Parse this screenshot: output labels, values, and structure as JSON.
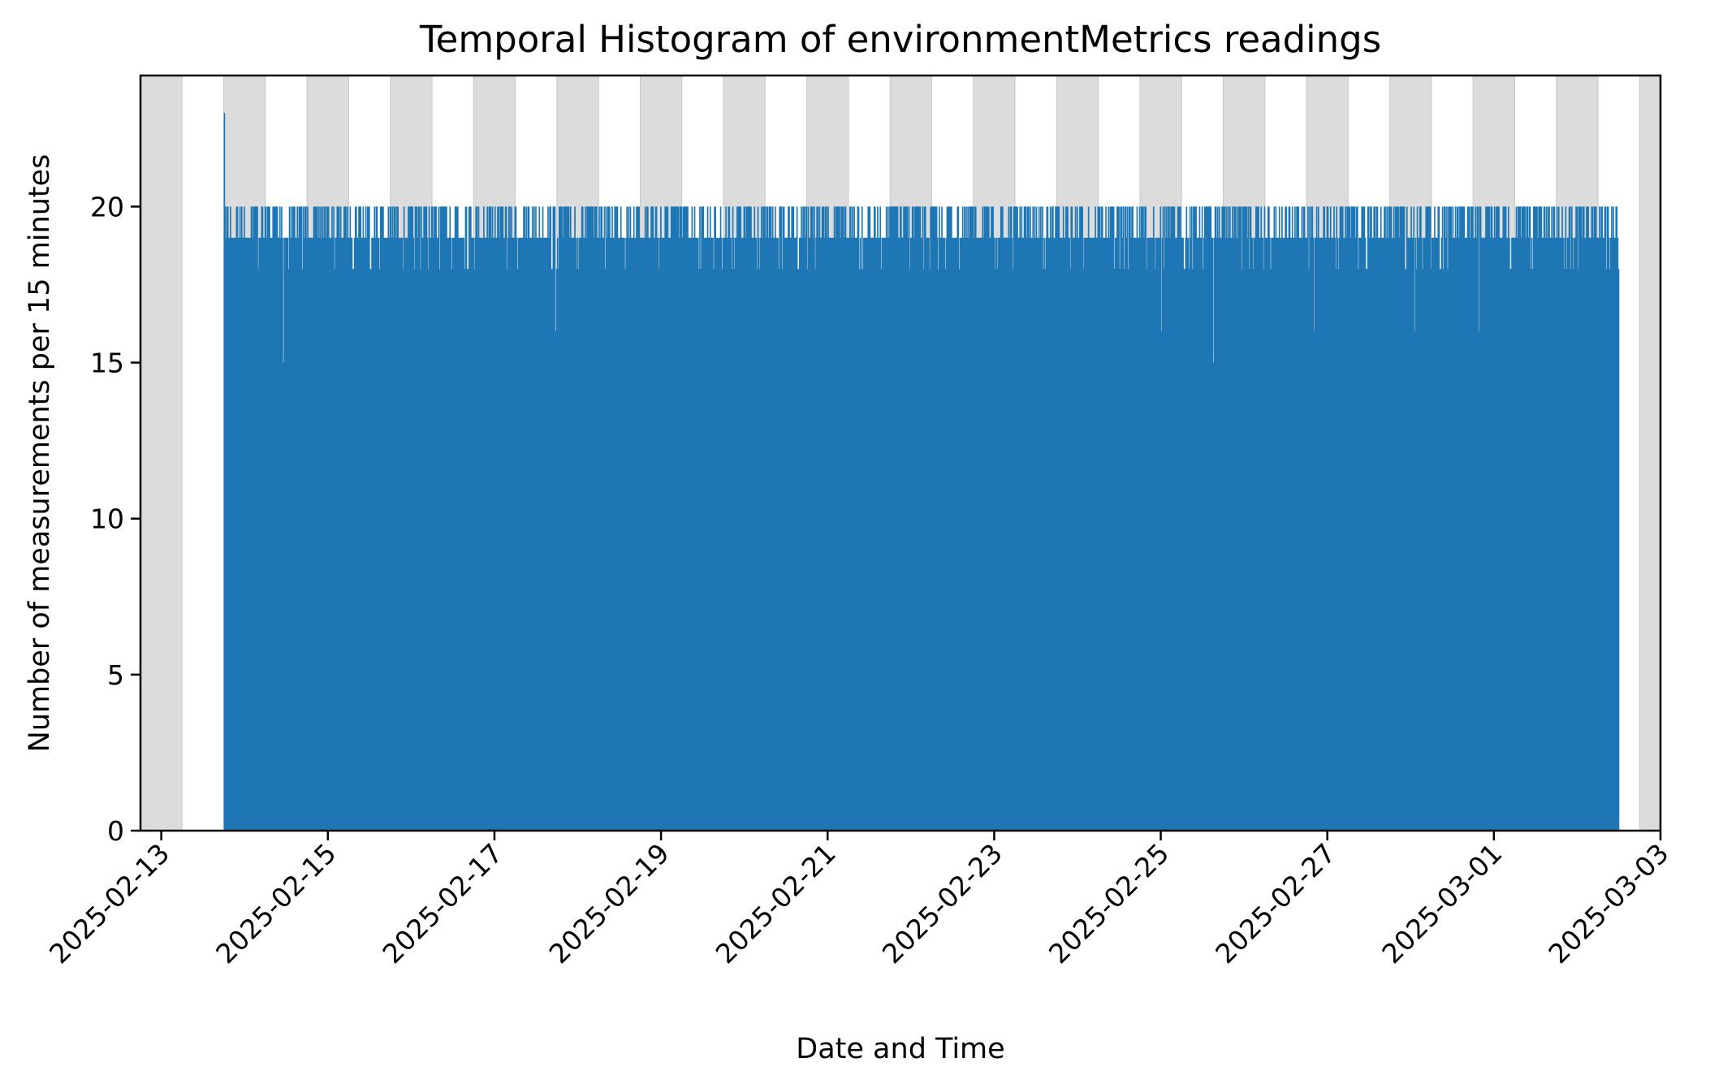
{
  "chart_data": {
    "type": "bar",
    "title": "Temporal Histogram of environmentMetrics readings",
    "xlabel": "Date and Time",
    "ylabel": "Number of measurements per 15 minutes",
    "bin_minutes": 15,
    "xlim": [
      "2025-02-12T18:00",
      "2025-03-03T00:00"
    ],
    "ylim": [
      0,
      24.2
    ],
    "x_ticks": [
      "2025-02-13",
      "2025-02-15",
      "2025-02-17",
      "2025-02-19",
      "2025-02-21",
      "2025-02-23",
      "2025-02-25",
      "2025-02-27",
      "2025-03-01",
      "2025-03-03"
    ],
    "y_ticks": [
      0,
      5,
      10,
      15,
      20
    ],
    "grid": false,
    "bar_color": "#1f77b4",
    "night_shading": {
      "color": "#dcdcdc",
      "periods": [
        [
          "2025-02-12T18:00",
          "2025-02-13T06:00"
        ],
        [
          "2025-02-13T18:00",
          "2025-02-14T06:00"
        ],
        [
          "2025-02-14T18:00",
          "2025-02-15T06:00"
        ],
        [
          "2025-02-15T18:00",
          "2025-02-16T06:00"
        ],
        [
          "2025-02-16T18:00",
          "2025-02-17T06:00"
        ],
        [
          "2025-02-17T18:00",
          "2025-02-18T06:00"
        ],
        [
          "2025-02-18T18:00",
          "2025-02-19T06:00"
        ],
        [
          "2025-02-19T18:00",
          "2025-02-20T06:00"
        ],
        [
          "2025-02-20T18:00",
          "2025-02-21T06:00"
        ],
        [
          "2025-02-21T18:00",
          "2025-02-22T06:00"
        ],
        [
          "2025-02-22T18:00",
          "2025-02-23T06:00"
        ],
        [
          "2025-02-23T18:00",
          "2025-02-24T06:00"
        ],
        [
          "2025-02-24T18:00",
          "2025-02-25T06:00"
        ],
        [
          "2025-02-25T18:00",
          "2025-02-26T06:00"
        ],
        [
          "2025-02-26T18:00",
          "2025-02-27T06:00"
        ],
        [
          "2025-02-27T18:00",
          "2025-02-28T06:00"
        ],
        [
          "2025-02-28T18:00",
          "2025-03-01T06:00"
        ],
        [
          "2025-03-01T18:00",
          "2025-03-02T06:00"
        ],
        [
          "2025-03-02T18:00",
          "2025-03-03T00:00"
        ]
      ]
    },
    "data_range": [
      "2025-02-13T18:00",
      "2025-03-02T12:00"
    ],
    "typical_counts": [
      19,
      20
    ],
    "notable_bins": [
      {
        "time": "2025-02-13T18:00",
        "count": 23
      },
      {
        "time": "2025-02-14T11:00",
        "count": 15
      },
      {
        "time": "2025-02-17T17:30",
        "count": 16
      },
      {
        "time": "2025-02-25T15:00",
        "count": 15
      },
      {
        "time": "2025-02-25T00:00",
        "count": 16
      },
      {
        "time": "2025-02-26T20:00",
        "count": 16
      },
      {
        "time": "2025-02-28T01:00",
        "count": 16
      },
      {
        "time": "2025-02-28T19:30",
        "count": 16
      }
    ]
  }
}
